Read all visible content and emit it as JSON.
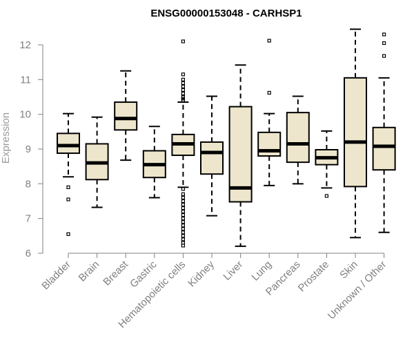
{
  "chart_data": {
    "type": "box",
    "title": "ENSG00000153048 - CARHSP1",
    "ylabel": "Expression",
    "xlabel": "",
    "ylim": [
      6,
      12.3
    ],
    "yticks": [
      6,
      7,
      8,
      9,
      10,
      11,
      12
    ],
    "categories": [
      "Bladder",
      "Brain",
      "Breast",
      "Gastric",
      "Hematopoietic cells",
      "Kidney",
      "Liver",
      "Lung",
      "Pancreas",
      "Prostate",
      "Skin",
      "Unknown / Other"
    ],
    "boxes": [
      {
        "min": 8.2,
        "q1": 8.88,
        "median": 9.1,
        "q3": 9.45,
        "max": 10.02,
        "outliers": [
          7.9,
          7.55,
          6.55
        ]
      },
      {
        "min": 7.32,
        "q1": 8.12,
        "median": 8.6,
        "q3": 9.15,
        "max": 9.92,
        "outliers": []
      },
      {
        "min": 8.68,
        "q1": 9.55,
        "median": 9.88,
        "q3": 10.35,
        "max": 11.25,
        "outliers": []
      },
      {
        "min": 7.6,
        "q1": 8.18,
        "median": 8.55,
        "q3": 8.95,
        "max": 9.65,
        "outliers": []
      },
      {
        "min": 7.9,
        "q1": 8.82,
        "median": 9.15,
        "q3": 9.42,
        "max": 10.35,
        "outliers": [
          12.1,
          11.15,
          11.0,
          10.9,
          10.8,
          10.7,
          10.6,
          10.5,
          10.45,
          10.4,
          7.85,
          7.7,
          7.6,
          7.5,
          7.4,
          7.3,
          7.2,
          7.1,
          7.0,
          6.9,
          6.8,
          6.7,
          6.6,
          6.5,
          6.4,
          6.3,
          6.22
        ]
      },
      {
        "min": 7.08,
        "q1": 8.28,
        "median": 8.9,
        "q3": 9.2,
        "max": 10.52,
        "outliers": []
      },
      {
        "min": 6.2,
        "q1": 7.48,
        "median": 7.88,
        "q3": 10.22,
        "max": 11.42,
        "outliers": []
      },
      {
        "min": 7.95,
        "q1": 8.8,
        "median": 8.95,
        "q3": 9.48,
        "max": 10.02,
        "outliers": [
          12.12,
          10.62
        ]
      },
      {
        "min": 8.0,
        "q1": 8.62,
        "median": 9.15,
        "q3": 10.05,
        "max": 10.52,
        "outliers": []
      },
      {
        "min": 7.88,
        "q1": 8.55,
        "median": 8.75,
        "q3": 8.98,
        "max": 9.52,
        "outliers": [
          7.65
        ]
      },
      {
        "min": 6.45,
        "q1": 7.92,
        "median": 9.2,
        "q3": 11.05,
        "max": 12.45,
        "outliers": []
      },
      {
        "min": 6.6,
        "q1": 8.4,
        "median": 9.08,
        "q3": 9.62,
        "max": 11.05,
        "outliers": [
          12.3,
          12.05,
          11.68
        ]
      }
    ],
    "box_fill": "#ede6cc",
    "grid": false,
    "legend": "none"
  }
}
